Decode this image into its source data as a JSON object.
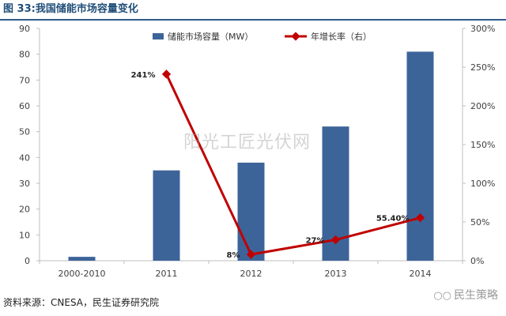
{
  "header": {
    "title": "图 33:我国储能市场容量变化"
  },
  "footer": {
    "source": "资料来源：CNESA，民生证券研究院",
    "brand": "民生策略",
    "brand_icon": "wechat-icon"
  },
  "watermark": "阳光工匠光伏网",
  "colors": {
    "bar": "#3d6499",
    "line": "#c00000",
    "title": "#1f4e79",
    "axis": "#bfbfbf"
  },
  "chart_data": {
    "type": "bar",
    "categories": [
      "2000-2010",
      "2011",
      "2012",
      "2013",
      "2014"
    ],
    "series": [
      {
        "name": "储能市场容量（MW）",
        "kind": "bar",
        "axis": "left",
        "values": [
          1.5,
          35,
          38,
          52,
          81
        ]
      },
      {
        "name": "年增长率（右）",
        "kind": "line",
        "axis": "right",
        "values": [
          null,
          2.41,
          0.08,
          0.27,
          0.554
        ],
        "data_labels": [
          "",
          "241%",
          "8%",
          "27%",
          "55.40%"
        ]
      }
    ],
    "y_left": {
      "ylim": [
        0,
        90
      ],
      "ticks": [
        0,
        10,
        20,
        30,
        40,
        50,
        60,
        70,
        80,
        90
      ],
      "tick_labels": [
        "0",
        "10",
        "20",
        "30",
        "40",
        "50",
        "60",
        "70",
        "80",
        "90"
      ]
    },
    "y_right": {
      "ylim": [
        0,
        3.0
      ],
      "ticks": [
        0,
        0.5,
        1.0,
        1.5,
        2.0,
        2.5,
        3.0
      ],
      "tick_labels": [
        "0%",
        "50%",
        "100%",
        "150%",
        "200%",
        "250%",
        "300%"
      ]
    },
    "grid": false,
    "legend": "top-center"
  }
}
